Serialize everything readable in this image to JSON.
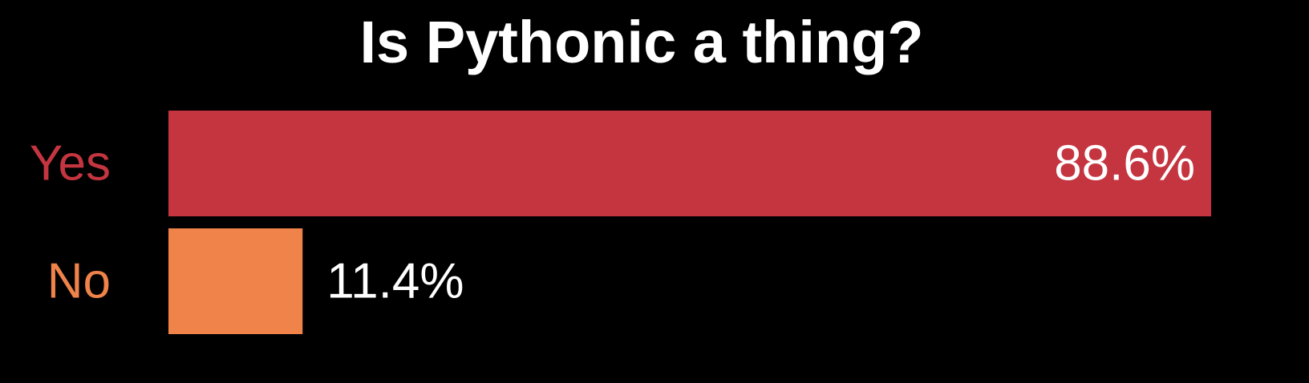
{
  "chart_data": {
    "type": "bar",
    "orientation": "horizontal",
    "title": "Is Pythonic a thing?",
    "xlabel": "",
    "ylabel": "",
    "categories": [
      "Yes",
      "No"
    ],
    "values": [
      88.6,
      11.4
    ],
    "value_labels": [
      "88.6%",
      "11.4%"
    ],
    "colors": [
      "#c43540",
      "#ef834a"
    ],
    "value_label_placement": [
      "inside-end",
      "outside-end"
    ],
    "xlim": [
      0,
      88.6
    ],
    "grid": false,
    "legend": "none",
    "background": "#000000",
    "title_color": "#ffffff",
    "value_label_color": "#ffffff"
  }
}
